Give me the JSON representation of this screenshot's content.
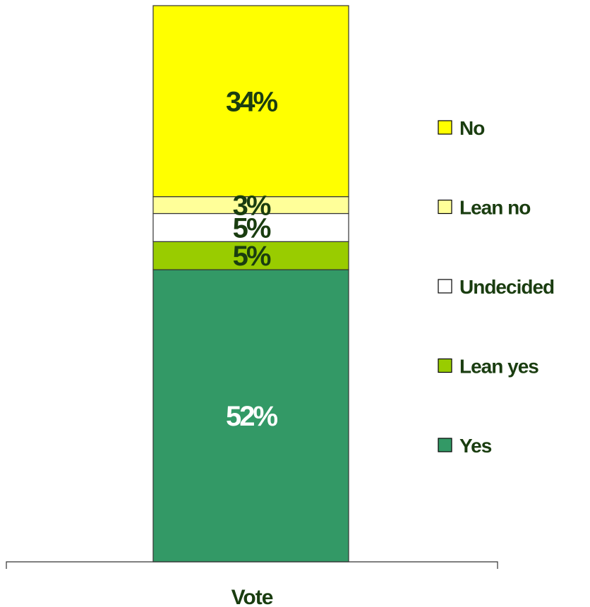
{
  "chart_data": {
    "type": "bar",
    "stacked": true,
    "categories": [
      "Vote"
    ],
    "series": [
      {
        "name": "Yes",
        "values": [
          52
        ],
        "label": "52%",
        "color": "#339966",
        "label_color": "#ffffff"
      },
      {
        "name": "Lean yes",
        "values": [
          5
        ],
        "label": "5%",
        "color": "#99cc00",
        "label_color": "#1a3d10"
      },
      {
        "name": "Undecided",
        "values": [
          5
        ],
        "label": "5%",
        "color": "#ffffff",
        "label_color": "#1a3d10"
      },
      {
        "name": "Lean no",
        "values": [
          3
        ],
        "label": "3%",
        "color": "#ffff99",
        "label_color": "#1a3d10"
      },
      {
        "name": "No",
        "values": [
          34
        ],
        "label": "34%",
        "color": "#ffff00",
        "label_color": "#1a3d10"
      }
    ],
    "ylim": [
      0,
      99
    ],
    "legend_position": "right",
    "legend_order": [
      "No",
      "Lean no",
      "Undecided",
      "Lean yes",
      "Yes"
    ],
    "grid": false
  }
}
